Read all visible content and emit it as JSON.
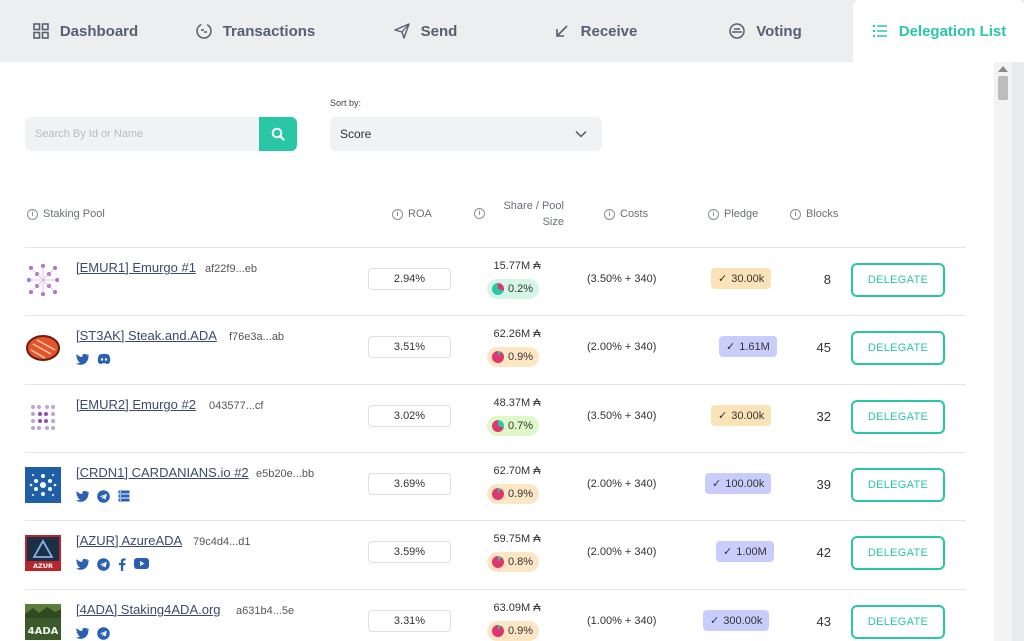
{
  "nav": {
    "tabs": [
      {
        "label": "Dashboard",
        "icon": "dashboard-grid-icon"
      },
      {
        "label": "Transactions",
        "icon": "transactions-cycle-icon"
      },
      {
        "label": "Send",
        "icon": "send-paper-plane-icon"
      },
      {
        "label": "Receive",
        "icon": "receive-arrow-icon"
      },
      {
        "label": "Voting",
        "icon": "voting-icon"
      },
      {
        "label": "Delegation List",
        "icon": "list-icon"
      }
    ],
    "active_tab": "Delegation List"
  },
  "search": {
    "placeholder": "Search By Id or Name",
    "icon": "search-icon"
  },
  "sort": {
    "label": "Sort by:",
    "selected": "Score"
  },
  "table": {
    "headers": {
      "pool": "Staking Pool",
      "roa": "ROA",
      "share": "Share / Pool Size",
      "costs": "Costs",
      "pledge": "Pledge",
      "blocks": "Blocks"
    },
    "rows": [
      {
        "name": "[EMUR1] Emurgo #1",
        "id": "af22f9...eb",
        "roa": "2.94%",
        "pool_size": "15.77M ₳",
        "share": "0.2%",
        "share_color": "#d5f5e8",
        "costs": "(3.50% + 340)",
        "pledge": "30.00k",
        "pledge_style": "orange",
        "blocks": "8",
        "button": "DELEGATE",
        "social": []
      },
      {
        "name": "[ST3AK] Steak.and.ADA",
        "id": "f76e3a...ab",
        "roa": "3.51%",
        "pool_size": "62.26M ₳",
        "share": "0.9%",
        "share_color": "#fde6c4",
        "costs": "(2.00% + 340)",
        "pledge": "1.61M",
        "pledge_style": "blue",
        "blocks": "45",
        "button": "DELEGATE",
        "social": [
          "twitter-icon",
          "discord-icon"
        ]
      },
      {
        "name": "[EMUR2] Emurgo #2",
        "id": "043577...cf",
        "roa": "3.02%",
        "pool_size": "48.37M ₳",
        "share": "0.7%",
        "share_color": "#dff7c9",
        "costs": "(3.50% + 340)",
        "pledge": "30.00k",
        "pledge_style": "orange",
        "blocks": "32",
        "button": "DELEGATE",
        "social": []
      },
      {
        "name": "[CRDN1] CARDANIANS.io #2",
        "id": "e5b20e...bb",
        "roa": "3.69%",
        "pool_size": "62.70M ₳",
        "share": "0.9%",
        "share_color": "#fde6c4",
        "costs": "(2.00% + 340)",
        "pledge": "100.00k",
        "pledge_style": "blue",
        "blocks": "39",
        "button": "DELEGATE",
        "social": [
          "twitter-icon",
          "telegram-icon",
          "server-icon"
        ]
      },
      {
        "name": "[AZUR] AzureADA",
        "id": "79c4d4...d1",
        "roa": "3.59%",
        "pool_size": "59.75M ₳",
        "share": "0.8%",
        "share_color": "#fde6c4",
        "costs": "(2.00% + 340)",
        "pledge": "1.00M",
        "pledge_style": "blue",
        "blocks": "42",
        "button": "DELEGATE",
        "social": [
          "twitter-icon",
          "telegram-icon",
          "facebook-icon",
          "youtube-icon"
        ]
      },
      {
        "name": "[4ADA] Staking4ADA.org",
        "id": "a631b4...5e",
        "roa": "3.31%",
        "pool_size": "63.09M ₳",
        "share": "0.9%",
        "share_color": "#fde6c4",
        "costs": "(1.00% + 340)",
        "pledge": "300.00k",
        "pledge_style": "blue",
        "blocks": "43",
        "button": "DELEGATE",
        "social": [
          "twitter-icon",
          "telegram-icon"
        ]
      }
    ]
  },
  "logo_texts": {
    "azur": "AZUR",
    "fourada": "4ADA"
  },
  "colors": {
    "accent": "#29c7a6",
    "link": "#3b4a6e",
    "icon_blue": "#2b5fb4",
    "pledge_orange": "#fbe3b8",
    "pledge_blue": "#c9cdfb"
  }
}
